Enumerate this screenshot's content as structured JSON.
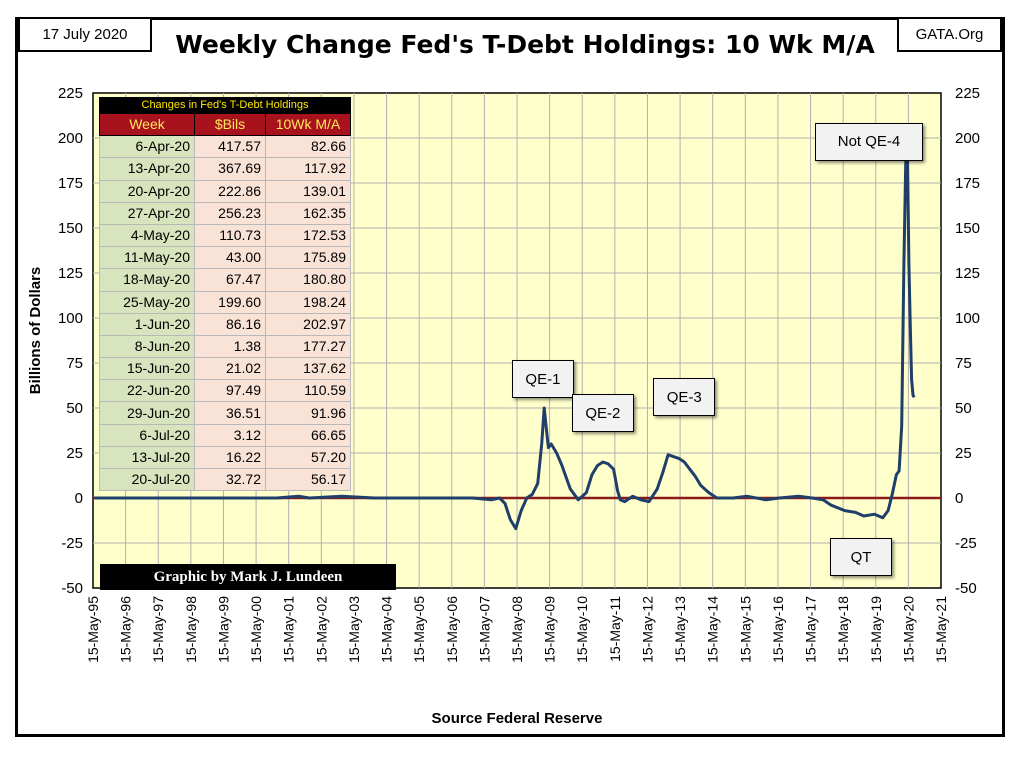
{
  "header": {
    "date": "17 July 2020",
    "source_tag": "GATA.Org",
    "title": "Weekly Change Fed's T-Debt Holdings: 10 Wk M/A"
  },
  "credit": "Graphic by Mark J. Lundeen",
  "table": {
    "caption": "Changes in Fed's T-Debt Holdings",
    "headers": [
      "Week",
      "$Bils",
      "10Wk M/A"
    ],
    "rows": [
      [
        "6-Apr-20",
        "417.57",
        "82.66"
      ],
      [
        "13-Apr-20",
        "367.69",
        "117.92"
      ],
      [
        "20-Apr-20",
        "222.86",
        "139.01"
      ],
      [
        "27-Apr-20",
        "256.23",
        "162.35"
      ],
      [
        "4-May-20",
        "110.73",
        "172.53"
      ],
      [
        "11-May-20",
        "43.00",
        "175.89"
      ],
      [
        "18-May-20",
        "67.47",
        "180.80"
      ],
      [
        "25-May-20",
        "199.60",
        "198.24"
      ],
      [
        "1-Jun-20",
        "86.16",
        "202.97"
      ],
      [
        "8-Jun-20",
        "1.38",
        "177.27"
      ],
      [
        "15-Jun-20",
        "21.02",
        "137.62"
      ],
      [
        "22-Jun-20",
        "97.49",
        "110.59"
      ],
      [
        "29-Jun-20",
        "36.51",
        "91.96"
      ],
      [
        "6-Jul-20",
        "3.12",
        "66.65"
      ],
      [
        "13-Jul-20",
        "16.22",
        "57.20"
      ],
      [
        "20-Jul-20",
        "32.72",
        "56.17"
      ]
    ]
  },
  "annotations": [
    {
      "label": "QE-1",
      "x": "2009-03-01",
      "y": 66
    },
    {
      "label": "QE-2",
      "x": "2011-01-01",
      "y": 47
    },
    {
      "label": "QE-3",
      "x": "2013-07-01",
      "y": 56
    },
    {
      "label": "Not QE-4",
      "x": "2019-03-01",
      "y": 198
    },
    {
      "label": "QT",
      "x": "2018-12-01",
      "y": -33
    }
  ],
  "chart_data": {
    "type": "line",
    "title": "Weekly Change Fed's T-Debt Holdings: 10 Wk M/A",
    "xlabel": "Source Federal Reserve",
    "ylabel": "Billions of Dollars",
    "ylim": [
      -50,
      225
    ],
    "xlim": [
      "1995-05-15",
      "2021-05-15"
    ],
    "yticks": [
      225,
      200,
      175,
      150,
      125,
      100,
      75,
      50,
      25,
      0,
      -25,
      -50
    ],
    "xticks": [
      "15-May-95",
      "15-May-96",
      "15-May-97",
      "15-May-98",
      "15-May-99",
      "15-May-00",
      "15-May-01",
      "15-May-02",
      "15-May-03",
      "15-May-04",
      "15-May-05",
      "15-May-06",
      "15-May-07",
      "15-May-08",
      "15-May-09",
      "15-May-10",
      "15-May-11",
      "15-May-12",
      "15-May-13",
      "15-May-14",
      "15-May-15",
      "15-May-16",
      "15-May-17",
      "15-May-18",
      "15-May-19",
      "15-May-20",
      "15-May-21"
    ],
    "grid": true,
    "zero_line": true,
    "colors": {
      "line": "#1f3f6a",
      "zero_line": "#8b1a1a",
      "plot_bg": "#ffffcc",
      "grid": "#b0b0b0"
    },
    "series": [
      {
        "x": [
          "1995-06-01",
          "1996-01-01",
          "1997-01-01",
          "1998-01-01",
          "1999-01-01",
          "2000-01-01",
          "2001-01-01",
          "2001-09-01",
          "2002-01-01",
          "2003-01-01",
          "2004-01-01",
          "2005-01-01",
          "2006-01-01",
          "2007-01-01",
          "2007-08-01",
          "2007-11-01",
          "2008-01-01",
          "2008-03-01",
          "2008-05-01",
          "2008-07-01",
          "2008-09-01",
          "2008-11-01",
          "2009-01-01",
          "2009-02-15",
          "2009-03-15",
          "2009-04-15",
          "2009-05-01",
          "2009-06-01",
          "2009-08-01",
          "2009-10-01",
          "2010-01-01",
          "2010-04-01",
          "2010-07-01",
          "2010-09-01",
          "2010-11-01",
          "2011-01-01",
          "2011-03-01",
          "2011-05-01",
          "2011-06-15",
          "2011-07-15",
          "2011-09-01",
          "2011-12-01",
          "2012-03-01",
          "2012-06-01",
          "2012-09-01",
          "2012-11-01",
          "2013-01-01",
          "2013-03-01",
          "2013-05-01",
          "2013-07-01",
          "2013-09-01",
          "2013-11-01",
          "2014-01-01",
          "2014-04-01",
          "2014-07-01",
          "2014-10-01",
          "2015-01-01",
          "2015-06-01",
          "2016-01-01",
          "2016-06-01",
          "2017-01-01",
          "2017-06-01",
          "2017-10-01",
          "2018-01-01",
          "2018-06-01",
          "2018-10-01",
          "2019-01-01",
          "2019-05-01",
          "2019-08-01",
          "2019-10-01",
          "2019-11-15",
          "2020-01-01",
          "2020-02-01",
          "2020-03-01",
          "2020-03-25",
          "2020-04-15",
          "2020-05-01",
          "2020-05-20",
          "2020-06-05",
          "2020-06-20",
          "2020-07-05",
          "2020-07-20"
        ],
        "y": [
          0,
          0,
          0,
          0,
          0,
          0,
          0,
          1,
          0,
          1,
          0,
          0,
          0,
          0,
          -1,
          0,
          -3,
          -12,
          -17,
          -7,
          0,
          2,
          8,
          30,
          50,
          35,
          28,
          30,
          25,
          18,
          5,
          -1,
          3,
          13,
          18,
          20,
          19,
          16,
          4,
          -1,
          -2,
          1,
          -1,
          -2,
          5,
          14,
          24,
          23,
          22,
          20,
          16,
          12,
          7,
          3,
          0,
          0,
          0,
          1,
          -1,
          0,
          1,
          0,
          -1,
          -4,
          -7,
          -8,
          -10,
          -9,
          -11,
          -7,
          2,
          13,
          15,
          40,
          130,
          185,
          202,
          130,
          95,
          66,
          57,
          56
        ]
      }
    ]
  }
}
